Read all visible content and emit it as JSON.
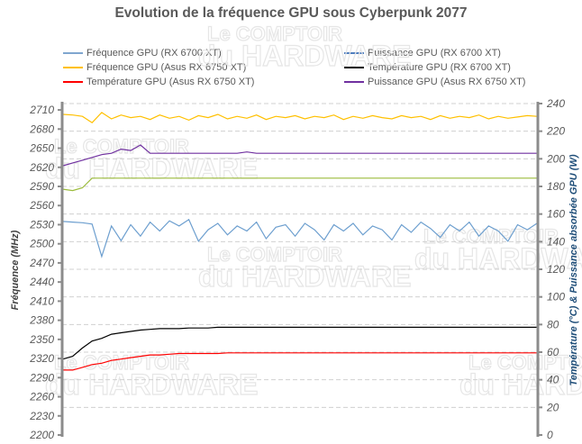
{
  "watermark": {
    "line1": "Le COMPTOIR",
    "line2": "du HARDWARE"
  },
  "chart_data": {
    "type": "line",
    "title": "Evolution de la fréquence GPU sous Cyberpunk 2077",
    "ylabel": "Fréquence (MHz)",
    "y2label": "Température (°C) & Puissance absorbée GPU (W)",
    "ylim": [
      2200,
      2720
    ],
    "yticks": [
      2200,
      2230,
      2260,
      2290,
      2320,
      2350,
      2380,
      2410,
      2440,
      2470,
      2500,
      2530,
      2560,
      2590,
      2620,
      2650,
      2680,
      2710
    ],
    "y2lim": [
      0,
      240
    ],
    "y2ticks": [
      0,
      20,
      40,
      60,
      80,
      100,
      120,
      140,
      160,
      180,
      200,
      220,
      240
    ],
    "grid": true,
    "legend_position": "top",
    "series": [
      {
        "name": "Fréquence GPU (RX 6700 XT)",
        "axis": "left",
        "color": "#6d9fcf",
        "legend_color": "#7fa6cf",
        "values": [
          2535,
          2534,
          2533,
          2531,
          2480,
          2528,
          2505,
          2530,
          2512,
          2534,
          2520,
          2536,
          2528,
          2538,
          2504,
          2522,
          2532,
          2514,
          2528,
          2520,
          2534,
          2508,
          2526,
          2530,
          2512,
          2532,
          2522,
          2506,
          2530,
          2520,
          2532,
          2514,
          2528,
          2522,
          2506,
          2530,
          2518,
          2534,
          2524,
          2510,
          2530,
          2520,
          2534,
          2512,
          2528,
          2520,
          2504,
          2530,
          2522,
          2532
        ]
      },
      {
        "name": "Fréquence GPU (Asus RX 6750 XT)",
        "axis": "left",
        "color": "#ffc000",
        "legend_color": "#ffc000",
        "values": [
          2703,
          2702,
          2700,
          2690,
          2706,
          2696,
          2702,
          2698,
          2700,
          2695,
          2702,
          2697,
          2700,
          2694,
          2701,
          2698,
          2703,
          2696,
          2700,
          2697,
          2702,
          2695,
          2700,
          2698,
          2701,
          2696,
          2700,
          2698,
          2702,
          2695,
          2700,
          2697,
          2701,
          2698,
          2696,
          2701,
          2698,
          2700,
          2695,
          2701,
          2697,
          2700,
          2698,
          2702,
          2696,
          2700,
          2697,
          2699,
          2701,
          2700
        ]
      },
      {
        "name": "Température GPU (Asus RX 6750 XT)",
        "axis": "right",
        "color": "#ff0000",
        "legend_color": "#ff0000",
        "values": [
          47,
          47,
          49,
          51,
          52,
          54,
          55,
          56,
          57,
          58,
          58,
          58.5,
          59,
          59,
          59,
          59,
          59,
          59.5,
          59.5,
          59.5,
          59.5,
          59.5,
          59.5,
          59.5,
          59.5,
          59.5,
          59.5,
          59.5,
          59.5,
          59.5,
          59.5,
          59.5,
          59.5,
          59.5,
          59.5,
          59.5,
          59.5,
          59.5,
          59.5,
          59.5,
          59.5,
          59.5,
          59.5,
          59.5,
          59.5,
          59.5,
          59.5,
          59.5,
          59.5,
          59.5
        ]
      },
      {
        "name": "Puissance GPU (RX 6700 XT)",
        "axis": "right",
        "color": "#9bbb3b",
        "legend_color": "#4f7ebe",
        "values": [
          178,
          177,
          179,
          186,
          186,
          186,
          186,
          186,
          186,
          186,
          186,
          186,
          186,
          186,
          186,
          186,
          186,
          186,
          186,
          186,
          186,
          186,
          186,
          186,
          186,
          186,
          186,
          186,
          186,
          186,
          186,
          186,
          186,
          186,
          186,
          186,
          186,
          186,
          186,
          186,
          186,
          186,
          186,
          186,
          186,
          186,
          186,
          186,
          186,
          186
        ]
      },
      {
        "name": "Température GPU (RX 6700 XT)",
        "axis": "right",
        "color": "#000000",
        "legend_color": "#000000",
        "values": [
          55,
          57,
          63,
          68,
          70,
          73,
          74,
          75,
          76,
          76.5,
          77,
          77,
          77,
          77.5,
          77.5,
          77.5,
          78,
          78,
          78,
          78,
          78,
          78,
          78,
          78,
          78,
          78,
          78,
          78,
          78,
          78,
          78,
          78,
          78,
          78,
          78,
          78,
          78,
          78,
          78,
          78,
          78,
          78,
          78,
          78,
          78,
          78,
          78,
          78,
          78,
          78
        ]
      },
      {
        "name": "Puissance GPU (Asus RX 6750 XT)",
        "axis": "right",
        "color": "#7030a0",
        "legend_color": "#7030a0",
        "values": [
          195,
          197,
          199,
          201,
          203,
          204,
          207,
          206,
          210,
          204,
          204,
          204,
          204,
          204,
          204,
          204,
          204,
          204,
          204,
          205,
          204,
          204,
          204,
          204,
          204,
          204,
          204,
          204,
          204,
          204,
          204,
          204,
          204,
          204,
          204,
          204,
          204,
          204,
          204,
          204,
          204,
          204,
          204,
          204,
          204,
          204,
          204,
          204,
          204,
          204
        ]
      }
    ]
  }
}
